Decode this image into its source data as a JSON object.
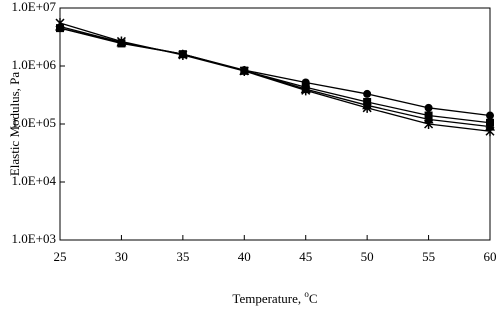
{
  "chart_data": {
    "type": "line",
    "x_label": [
      "Temperature, ",
      "o",
      "C"
    ],
    "y_label": "Elastic Modulus, Pa",
    "x": [
      25,
      30,
      35,
      40,
      45,
      50,
      55,
      60
    ],
    "xlim": [
      25,
      60
    ],
    "xticks": [
      25,
      30,
      35,
      40,
      45,
      50,
      55,
      60
    ],
    "ylog": true,
    "ylim": [
      1000,
      10000000
    ],
    "yticks": [
      {
        "value": 1000,
        "label": "1.0E+03"
      },
      {
        "value": 10000,
        "label": "1.0E+04"
      },
      {
        "value": 100000,
        "label": "1.0E+05"
      },
      {
        "value": 1000000,
        "label": "1.0E+06"
      },
      {
        "value": 10000000,
        "label": "1.0E+07"
      }
    ],
    "series": [
      {
        "marker": "circle",
        "color": "#000000",
        "values": [
          4500000,
          2500000,
          1600000,
          850000,
          520000,
          330000,
          190000,
          140000
        ]
      },
      {
        "marker": "square",
        "color": "#000000",
        "values": [
          4500000,
          2450000,
          1600000,
          830000,
          430000,
          240000,
          140000,
          105000
        ]
      },
      {
        "marker": "triangle",
        "color": "#000000",
        "values": [
          4800000,
          2550000,
          1600000,
          830000,
          400000,
          210000,
          120000,
          90000
        ]
      },
      {
        "marker": "cross",
        "color": "#000000",
        "values": [
          5500000,
          2650000,
          1550000,
          820000,
          380000,
          190000,
          100000,
          75000
        ]
      }
    ]
  }
}
